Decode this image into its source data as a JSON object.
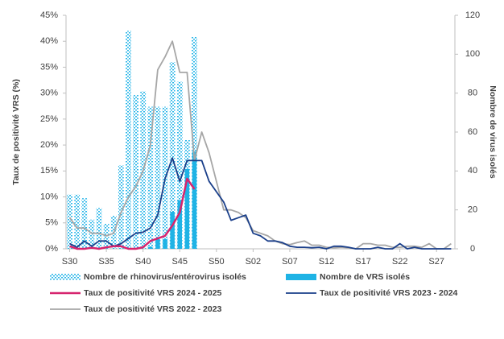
{
  "chart_data": {
    "type": "combo",
    "categories": [
      "S30",
      null,
      null,
      null,
      null,
      "S35",
      null,
      null,
      null,
      null,
      "S40",
      null,
      null,
      null,
      null,
      "S45",
      null,
      null,
      null,
      null,
      "S50",
      null,
      null,
      null,
      null,
      "S02",
      null,
      null,
      null,
      null,
      "S07",
      null,
      null,
      null,
      null,
      "S12",
      null,
      null,
      null,
      null,
      "S17",
      null,
      null,
      null,
      null,
      "S22",
      null,
      null,
      null,
      null,
      "S27",
      null,
      null
    ],
    "ylabel": "Taux de positivité VRS (%)",
    "y2label": "Nombre de virus isolés",
    "ylim": [
      0,
      45
    ],
    "yticks": [
      {
        "value": 0,
        "label": "0%"
      },
      {
        "value": 5,
        "label": "5%"
      },
      {
        "value": 10,
        "label": "10%"
      },
      {
        "value": 15,
        "label": "15%"
      },
      {
        "value": 20,
        "label": "20%"
      },
      {
        "value": 25,
        "label": "25%"
      },
      {
        "value": 30,
        "label": "30%"
      },
      {
        "value": 35,
        "label": "35%"
      },
      {
        "value": 40,
        "label": "40%"
      },
      {
        "value": 45,
        "label": "45%"
      }
    ],
    "y2lim": [
      0,
      120
    ],
    "y2ticks": [
      0,
      20,
      40,
      60,
      80,
      100,
      120
    ],
    "series": [
      {
        "name": "Nombre de rhinovirus/entérovirus isolés",
        "type": "bar",
        "style": "dotted",
        "axis": "y2",
        "color": "#29b6e8",
        "values": [
          28,
          28,
          26,
          15,
          21,
          13,
          17,
          43,
          112,
          79,
          81,
          73,
          73,
          73,
          96,
          86,
          56,
          109,
          null,
          null,
          null,
          null,
          null,
          null,
          null,
          null,
          null,
          null,
          null,
          null,
          null,
          null,
          null,
          null,
          null,
          null,
          null,
          null,
          null,
          null,
          null,
          null,
          null,
          null,
          null,
          null,
          null,
          null,
          null,
          null,
          null,
          null,
          null
        ]
      },
      {
        "name": "Nombre de VRS isolés",
        "type": "bar",
        "axis": "y2",
        "color": "#1fb3e5",
        "values": [
          null,
          null,
          null,
          null,
          null,
          null,
          null,
          null,
          null,
          null,
          null,
          1,
          5,
          5,
          19,
          25,
          41,
          50,
          null,
          null,
          null,
          null,
          null,
          null,
          null,
          null,
          null,
          null,
          null,
          null,
          null,
          null,
          null,
          null,
          null,
          null,
          null,
          null,
          null,
          null,
          null,
          null,
          null,
          null,
          null,
          null,
          null,
          null,
          null,
          null,
          null,
          null,
          null
        ]
      },
      {
        "name": "Taux de positivité VRS 2024 - 2025",
        "type": "line",
        "color": "#d6246e",
        "width": 2.5,
        "values": [
          0.5,
          0,
          0,
          0.2,
          0,
          0.3,
          0.5,
          0.5,
          0,
          0,
          0.3,
          1.5,
          2,
          2.5,
          4.5,
          7,
          13.5,
          11.5,
          null,
          null,
          null,
          null,
          null,
          null,
          null,
          null,
          null,
          null,
          null,
          null,
          null,
          null,
          null,
          null,
          null,
          null,
          null,
          null,
          null,
          null,
          null,
          null,
          null,
          null,
          null,
          null,
          null,
          null,
          null,
          null,
          null,
          null,
          null
        ]
      },
      {
        "name": "Taux de positivité VRS 2023 - 2024",
        "type": "line",
        "color": "#1a3f8a",
        "width": 1.8,
        "values": [
          1,
          0.3,
          1.5,
          0.5,
          1.5,
          1.5,
          0.5,
          1,
          2,
          3,
          3.2,
          4,
          6.5,
          13.5,
          17.5,
          13,
          17,
          17,
          17,
          13,
          11,
          9,
          5.5,
          6,
          6.5,
          3,
          2.5,
          1.5,
          1.5,
          1.2,
          0.5,
          0.3,
          0.3,
          0.2,
          0.3,
          0,
          0.5,
          0.5,
          0.3,
          0,
          0,
          0,
          0.3,
          0,
          0,
          1,
          0,
          0.3,
          0,
          0,
          0,
          0,
          0
        ]
      },
      {
        "name": "Taux de positivité VRS 2022 - 2023",
        "type": "line",
        "color": "#a6a6a6",
        "width": 1.8,
        "values": [
          6,
          4,
          4,
          3,
          3,
          2.5,
          3,
          7,
          10,
          12,
          15,
          20,
          34.5,
          37,
          40,
          34,
          34,
          17,
          22.5,
          18.5,
          13,
          7.5,
          7.5,
          7,
          6,
          3.5,
          3,
          2.5,
          1.5,
          1,
          0.8,
          1.2,
          1.5,
          0.7,
          0.7,
          0.3,
          0.2,
          0.3,
          0.2,
          0,
          1,
          1,
          0.7,
          0.7,
          0.3,
          0.3,
          0.5,
          0.5,
          0.3,
          1,
          0,
          0,
          1
        ]
      }
    ]
  }
}
